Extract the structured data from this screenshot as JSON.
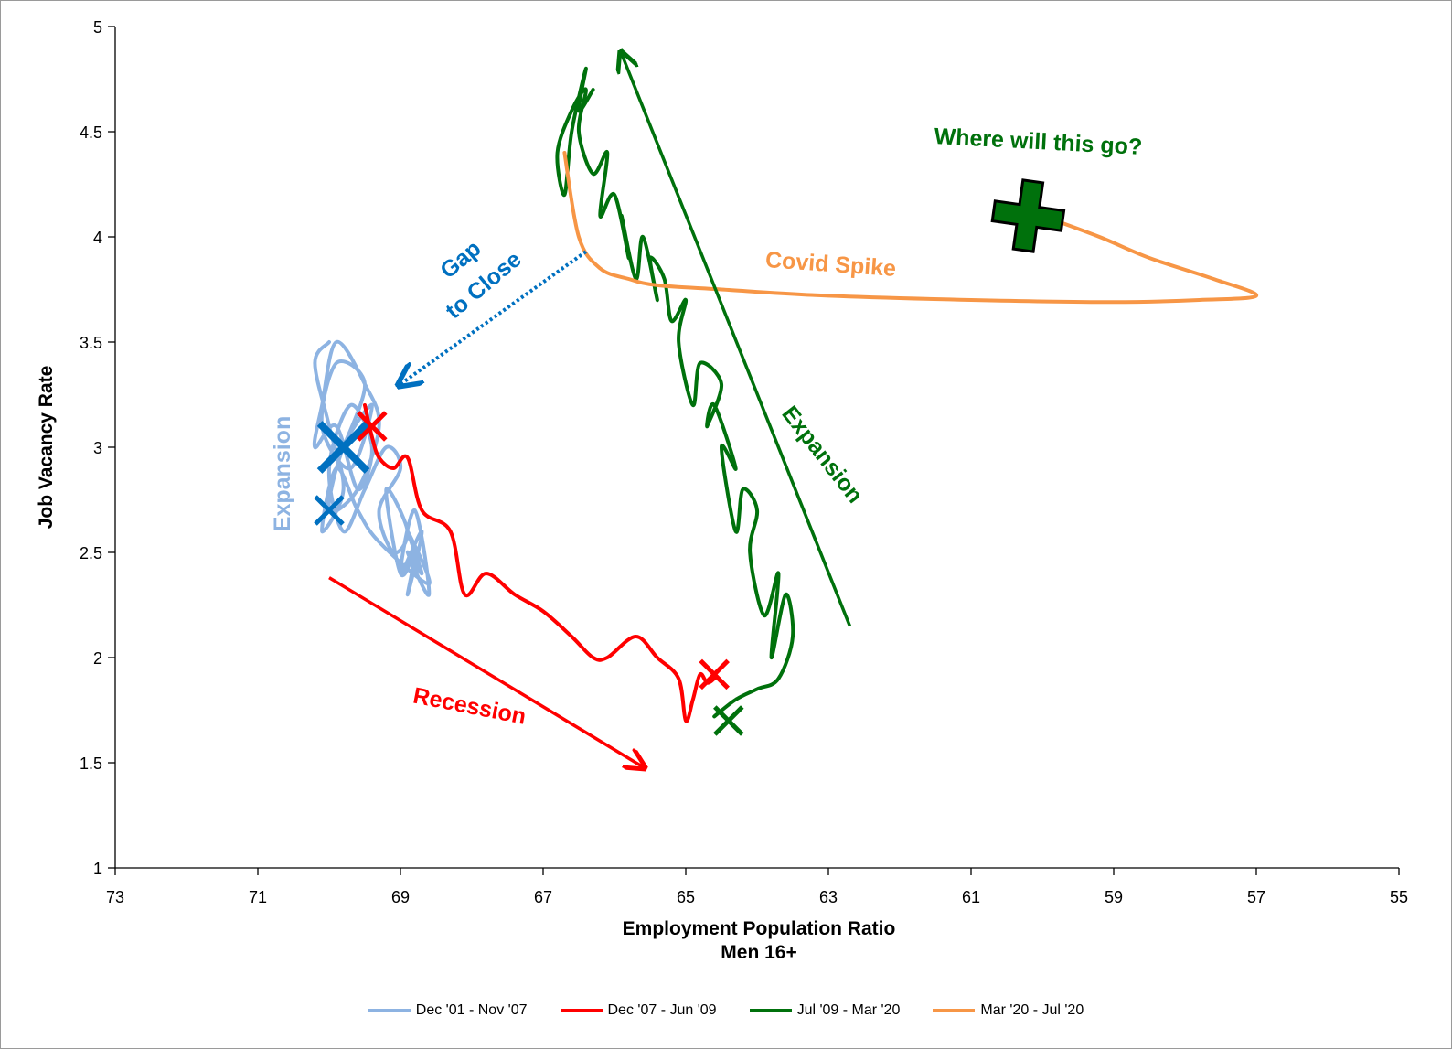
{
  "chart_data": {
    "type": "line",
    "xlabel": "Employment Population Ratio",
    "xlabel2": "Men 16+",
    "ylabel": "Job Vacancy Rate",
    "xlim": [
      73,
      55
    ],
    "ylim": [
      1,
      5
    ],
    "x_reversed": true,
    "x_ticks": [
      "73",
      "71",
      "69",
      "67",
      "65",
      "63",
      "61",
      "59",
      "57",
      "55"
    ],
    "y_ticks": [
      "1",
      "1.5",
      "2",
      "2.5",
      "3",
      "3.5",
      "4",
      "4.5",
      "5"
    ],
    "grid": false,
    "legend_position": "bottom",
    "series": [
      {
        "name": "Dec '01 - Nov '07",
        "color": "#8db3e2",
        "x": [
          69.8,
          69.5,
          69.9,
          70.1,
          69.7,
          69.4,
          69.8,
          70.0,
          69.6,
          69.3,
          69.5,
          69.9,
          70.1,
          70.2,
          69.9,
          69.6,
          69.4,
          69.7,
          70.0,
          69.8,
          69.5,
          69.2,
          69.0,
          69.3,
          69.1,
          68.9,
          69.2,
          69.0,
          68.8,
          68.9,
          68.7,
          69.0,
          68.8,
          68.6,
          68.9,
          68.7,
          68.9,
          68.6,
          69.3,
          69.6,
          69.9,
          70.1,
          69.8,
          70.0,
          70.2,
          70.0
        ],
        "y": [
          3.0,
          3.3,
          3.4,
          3.1,
          2.9,
          3.2,
          3.0,
          2.7,
          2.8,
          3.1,
          3.3,
          3.5,
          3.2,
          3.0,
          3.1,
          2.8,
          3.0,
          3.2,
          2.9,
          2.6,
          2.8,
          3.0,
          2.9,
          2.7,
          2.5,
          2.6,
          2.8,
          2.4,
          2.5,
          2.3,
          2.6,
          2.4,
          2.7,
          2.3,
          2.5,
          2.4,
          2.6,
          2.35,
          2.55,
          2.7,
          2.9,
          2.6,
          2.8,
          3.1,
          3.4,
          3.5
        ]
      },
      {
        "name": "Dec '07 - Jun '09",
        "color": "#ff0000",
        "x": [
          69.5,
          69.4,
          69.3,
          69.1,
          68.9,
          68.7,
          68.3,
          68.1,
          67.8,
          67.4,
          67.0,
          66.6,
          66.3,
          66.1,
          65.7,
          65.4,
          65.1,
          65.0,
          64.9,
          64.8,
          64.7,
          64.6
        ],
        "y": [
          3.2,
          3.05,
          2.95,
          2.9,
          2.95,
          2.7,
          2.6,
          2.3,
          2.4,
          2.3,
          2.22,
          2.1,
          2.0,
          2.0,
          2.1,
          2.0,
          1.9,
          1.7,
          1.8,
          1.92,
          1.88,
          1.9
        ]
      },
      {
        "name": "Jul '09 - Mar '20",
        "color": "#00710c",
        "x": [
          64.6,
          64.3,
          64.0,
          63.7,
          63.5,
          63.6,
          63.8,
          63.7,
          63.9,
          64.1,
          64.0,
          64.2,
          64.3,
          64.5,
          64.3,
          64.6,
          64.7,
          64.5,
          64.8,
          64.9,
          65.1,
          65.0,
          65.2,
          65.3,
          65.5,
          65.4,
          65.6,
          65.7,
          65.9,
          65.8,
          66.0,
          66.2,
          66.1,
          66.3,
          66.5,
          66.4,
          66.6,
          66.8,
          66.7,
          66.6,
          66.4,
          66.5,
          66.3
        ],
        "y": [
          1.72,
          1.8,
          1.85,
          1.9,
          2.1,
          2.3,
          2.0,
          2.4,
          2.2,
          2.5,
          2.7,
          2.8,
          2.6,
          3.0,
          2.9,
          3.2,
          3.1,
          3.3,
          3.4,
          3.2,
          3.5,
          3.7,
          3.6,
          3.8,
          3.9,
          3.7,
          4.0,
          3.8,
          4.1,
          3.9,
          4.2,
          4.1,
          4.4,
          4.3,
          4.5,
          4.7,
          4.6,
          4.4,
          4.2,
          4.5,
          4.8,
          4.6,
          4.7
        ]
      },
      {
        "name": "Mar '20 - Jul '20",
        "color": "#f79646",
        "x": [
          66.7,
          66.5,
          66.2,
          65.8,
          65.4,
          64.5,
          63.0,
          61.0,
          59.0,
          57.8,
          57.0,
          57.6,
          58.5,
          59.2,
          60.0
        ],
        "y": [
          4.4,
          4.0,
          3.85,
          3.8,
          3.77,
          3.75,
          3.72,
          3.7,
          3.69,
          3.7,
          3.72,
          3.8,
          3.9,
          4.0,
          4.1
        ]
      }
    ],
    "markers": [
      {
        "x": 69.8,
        "y": 3.0,
        "color": "#0070c0",
        "size": "large",
        "shape": "x"
      },
      {
        "x": 70.0,
        "y": 2.7,
        "color": "#0070c0",
        "size": "small",
        "shape": "x"
      },
      {
        "x": 69.4,
        "y": 3.1,
        "color": "#ff0000",
        "size": "small",
        "shape": "x"
      },
      {
        "x": 64.6,
        "y": 1.92,
        "color": "#ff0000",
        "size": "small",
        "shape": "x"
      },
      {
        "x": 64.4,
        "y": 1.7,
        "color": "#00710c",
        "size": "small",
        "shape": "x"
      },
      {
        "x": 60.2,
        "y": 4.1,
        "color": "#00710c",
        "size": "big-outlined",
        "shape": "x"
      }
    ],
    "annotations": [
      {
        "id": "where",
        "text": "Where will this go?",
        "color": "#00710c"
      },
      {
        "id": "covid",
        "text": "Covid Spike",
        "color": "#f79646"
      },
      {
        "id": "gap1",
        "text": "Gap",
        "color": "#0070c0"
      },
      {
        "id": "gap2",
        "text": "to Close",
        "color": "#0070c0"
      },
      {
        "id": "exp_blue",
        "text": "Expansion",
        "color": "#8db3e2"
      },
      {
        "id": "exp_green",
        "text": "Expansion",
        "color": "#00710c"
      },
      {
        "id": "recession",
        "text": "Recession",
        "color": "#ff0000"
      }
    ],
    "arrows": [
      {
        "id": "green-arrow",
        "color": "#00710c",
        "from": [
          62.7,
          2.15
        ],
        "to": [
          65.9,
          4.87
        ],
        "style": "solid"
      },
      {
        "id": "red-arrow",
        "color": "#ff0000",
        "from": [
          70.0,
          2.38
        ],
        "to": [
          65.6,
          1.48
        ],
        "style": "solid"
      },
      {
        "id": "blue-arrow",
        "color": "#0070c0",
        "from": [
          66.4,
          3.93
        ],
        "to": [
          69.0,
          3.3
        ],
        "style": "dotted"
      }
    ]
  }
}
